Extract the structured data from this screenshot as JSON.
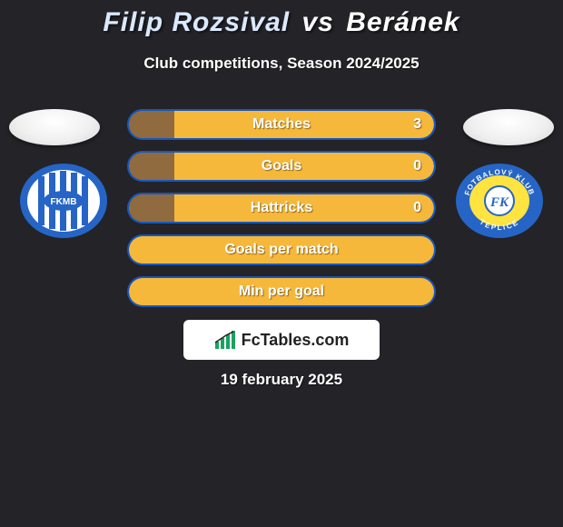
{
  "background_color": "#232328",
  "title": {
    "player1": "Filip Rozsival",
    "vs": "vs",
    "player2": "Beránek",
    "fontsize": 30,
    "player1_color": "#dbe9ff",
    "vs_color": "#ffffff",
    "player2_color": "#ffffff"
  },
  "subtitle": {
    "text": "Club competitions, Season 2024/2025",
    "fontsize": 17,
    "color": "#ffffff"
  },
  "player_photos": {
    "shape": "ellipse",
    "bg": "#f3f3f3"
  },
  "clubs": {
    "left": {
      "name": "FK Mladá Boleslav",
      "badge_text": "FKMB",
      "ring_color": "#2665c5",
      "inner_bg": "#ffffff",
      "stripe_color": "#2665c5"
    },
    "right": {
      "name": "FK Teplice",
      "badge_text": "FK",
      "ring_color": "#2665c5",
      "ring_text": "FOTBALOVÝ KLUB · TEPLICE",
      "inner_bg": "#ffe340",
      "monogram_color": "#2665c5"
    }
  },
  "rows": {
    "common": {
      "height": 34,
      "radius": 17,
      "fontsize": 16,
      "text_color": "#ffffff"
    },
    "items": [
      {
        "label": "Matches",
        "left_value": "",
        "right_value": "3",
        "border_color": "#1757c0",
        "fill_color": "#8f6b3f",
        "track_color": "#f6b83b",
        "fill_pct": 15
      },
      {
        "label": "Goals",
        "left_value": "",
        "right_value": "0",
        "border_color": "#1757c0",
        "fill_color": "#8f6b3f",
        "track_color": "#f6b83b",
        "fill_pct": 15
      },
      {
        "label": "Hattricks",
        "left_value": "",
        "right_value": "0",
        "border_color": "#1757c0",
        "fill_color": "#8f6b3f",
        "track_color": "#f6b83b",
        "fill_pct": 15
      },
      {
        "label": "Goals per match",
        "left_value": "",
        "right_value": "",
        "border_color": "#1757c0",
        "fill_color": "#f6b83b",
        "track_color": "#f6b83b",
        "fill_pct": 100
      },
      {
        "label": "Min per goal",
        "left_value": "",
        "right_value": "",
        "border_color": "#1757c0",
        "fill_color": "#f6b83b",
        "track_color": "#f6b83b",
        "fill_pct": 100
      }
    ]
  },
  "brand": {
    "text": "FcTables.com",
    "bg": "#ffffff",
    "icon_color": "#1aa260"
  },
  "date": {
    "text": "19 february 2025",
    "color": "#ffffff",
    "fontsize": 17
  }
}
